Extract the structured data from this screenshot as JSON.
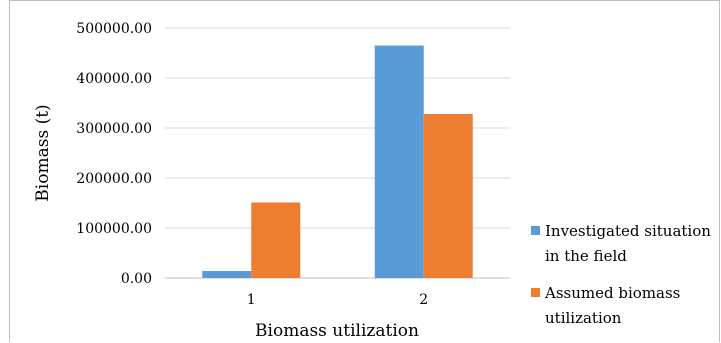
{
  "chart_data": {
    "type": "bar",
    "categories": [
      "1",
      "2"
    ],
    "series": [
      {
        "name": "Investigated situation in the field",
        "values": [
          14000,
          465000
        ],
        "color": "#5b9bd5"
      },
      {
        "name": "Assumed biomass utilization",
        "values": [
          151000,
          328000
        ],
        "color": "#ed7d31"
      }
    ],
    "xlabel": "Biomass utilization",
    "ylabel": "Biomass (t)",
    "ylim": [
      0,
      500000
    ],
    "yticks": [
      "0.00",
      "100000.00",
      "200000.00",
      "300000.00",
      "400000.00",
      "500000.00"
    ],
    "grid": true,
    "legend_position": "right",
    "legend_lines": [
      [
        "Investigated situation",
        "in the field"
      ],
      [
        "Assumed biomass",
        "utilization"
      ]
    ]
  }
}
